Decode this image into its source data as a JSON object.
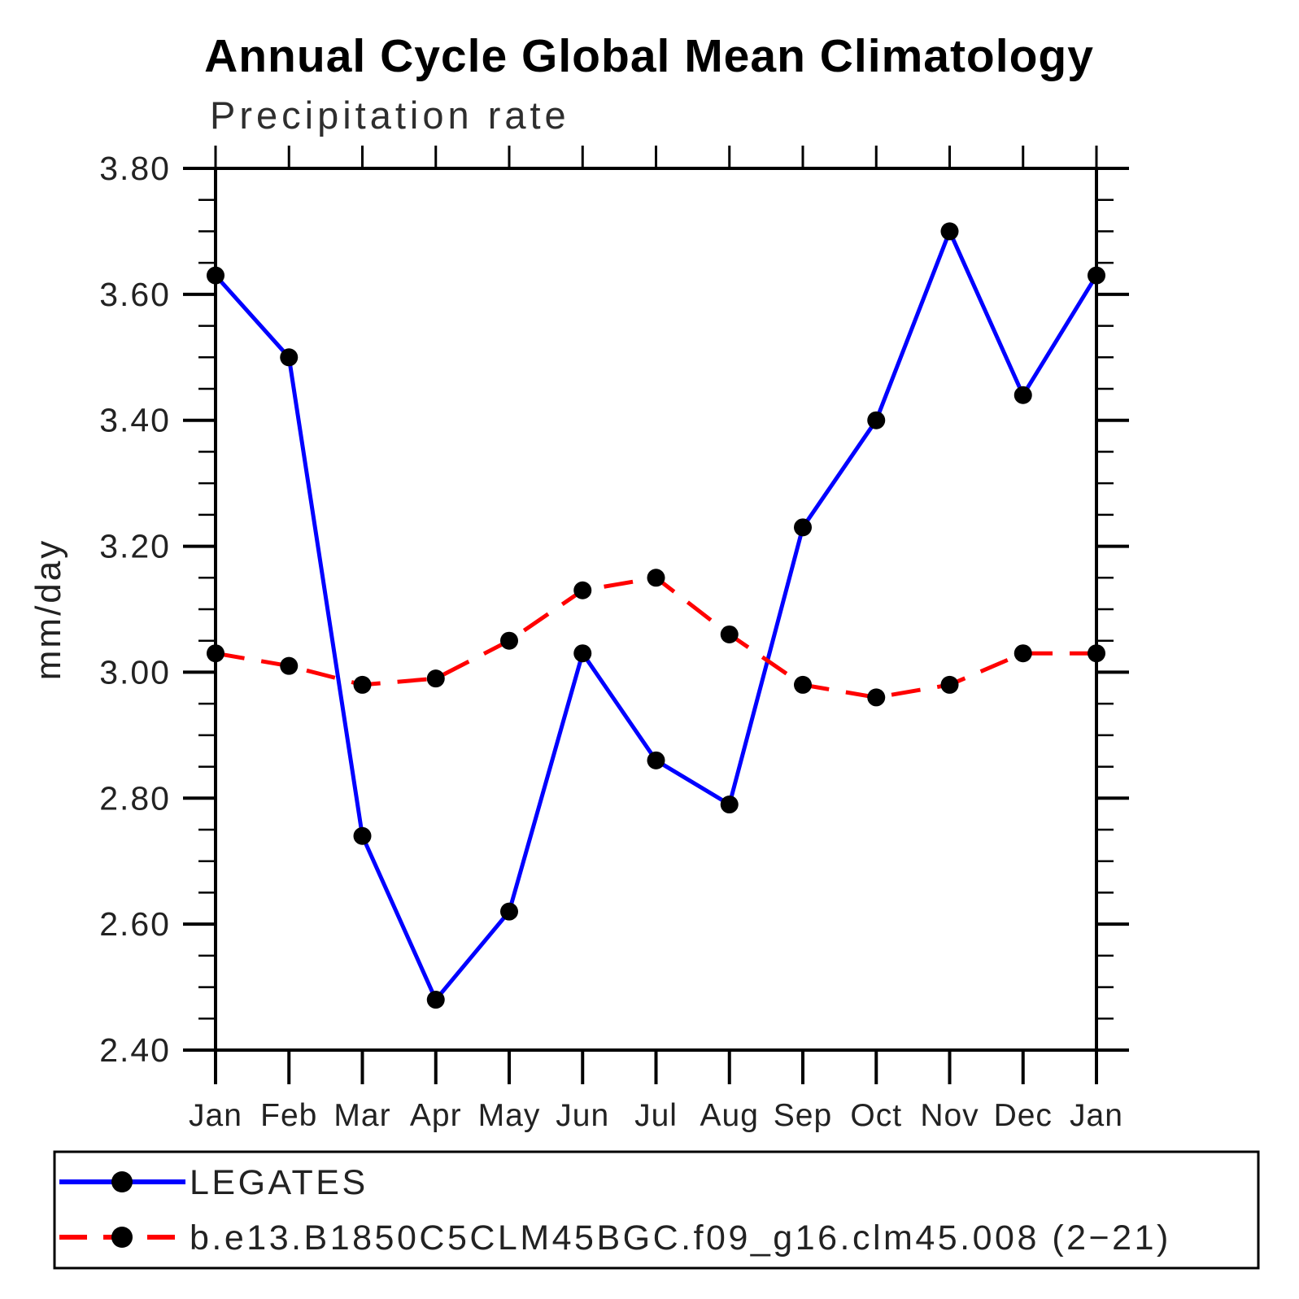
{
  "header": {
    "title": "Annual Cycle Global Mean Climatology"
  },
  "chart_data": {
    "type": "line",
    "title": "Annual Cycle Global Mean Climatology",
    "subtitle": "Precipitation rate",
    "ylabel": "mm/day",
    "xlabel": "",
    "categories": [
      "Jan",
      "Feb",
      "Mar",
      "Apr",
      "May",
      "Jun",
      "Jul",
      "Aug",
      "Sep",
      "Oct",
      "Nov",
      "Dec",
      "Jan"
    ],
    "series": [
      {
        "name": "LEGATES",
        "color": "#0000ff",
        "line_style": "solid",
        "marker": "circle",
        "marker_color": "#000000",
        "values": [
          3.63,
          3.5,
          2.74,
          2.48,
          2.62,
          3.03,
          2.86,
          2.79,
          3.23,
          3.4,
          3.7,
          3.44,
          3.63
        ]
      },
      {
        "name": "b.e13.B1850C5CLM45BGC.f09_g16.clm45.008 (2−21)",
        "color": "#ff0000",
        "line_style": "dashed",
        "marker": "circle",
        "marker_color": "#000000",
        "values": [
          3.03,
          3.01,
          2.98,
          2.99,
          3.05,
          3.13,
          3.15,
          3.06,
          2.98,
          2.96,
          2.98,
          3.03,
          3.03
        ]
      }
    ],
    "ylim": [
      2.4,
      3.8
    ],
    "ytick_labels": [
      "2.40",
      "2.60",
      "2.80",
      "3.00",
      "3.20",
      "3.40",
      "3.60",
      "3.80"
    ],
    "ytick_major_step": 0.2,
    "ytick_minor_step": 0.05,
    "grid": false,
    "legend_position": "bottom-left-box"
  },
  "legend": {
    "items": [
      {
        "label": "LEGATES",
        "color": "#0000ff",
        "style": "solid"
      },
      {
        "label": "b.e13.B1850C5CLM45BGC.f09_g16.clm45.008 (2−21)",
        "color": "#ff0000",
        "style": "dashed"
      }
    ]
  }
}
